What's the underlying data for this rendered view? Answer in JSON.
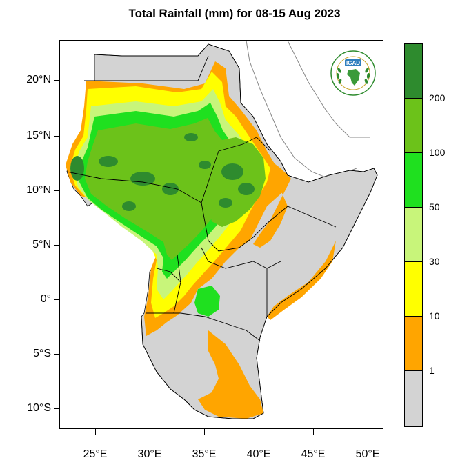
{
  "title": "Total Rainfall (mm) for 08-15 Aug 2023",
  "map": {
    "region": "Greater Horn of Africa",
    "extent": {
      "lon_min": 22,
      "lon_max": 52,
      "lat_min": -12,
      "lat_max": 24
    },
    "lat_ticks": [
      {
        "value": 20,
        "label": "20°N"
      },
      {
        "value": 15,
        "label": "15°N"
      },
      {
        "value": 10,
        "label": "10°N"
      },
      {
        "value": 5,
        "label": "5°N"
      },
      {
        "value": 0,
        "label": "0°"
      },
      {
        "value": -5,
        "label": "5°S"
      },
      {
        "value": -10,
        "label": "10°S"
      }
    ],
    "lon_ticks": [
      {
        "value": 25,
        "label": "25°E"
      },
      {
        "value": 30,
        "label": "30°E"
      },
      {
        "value": 35,
        "label": "35°E"
      },
      {
        "value": 40,
        "label": "40°E"
      },
      {
        "value": 45,
        "label": "45°E"
      },
      {
        "value": 50,
        "label": "50°E"
      }
    ]
  },
  "legend": {
    "bins": [
      {
        "color": "#2e8b2e",
        "label": "200"
      },
      {
        "color": "#6cc21a",
        "label": "100"
      },
      {
        "color": "#1fe01f",
        "label": "50"
      },
      {
        "color": "#c8f57a",
        "label": "30"
      },
      {
        "color": "#ffff00",
        "label": "10"
      },
      {
        "color": "#ffa500",
        "label": "1"
      },
      {
        "color": "#d3d3d3",
        "label": ""
      }
    ]
  },
  "logo": {
    "text": "IGAD"
  }
}
